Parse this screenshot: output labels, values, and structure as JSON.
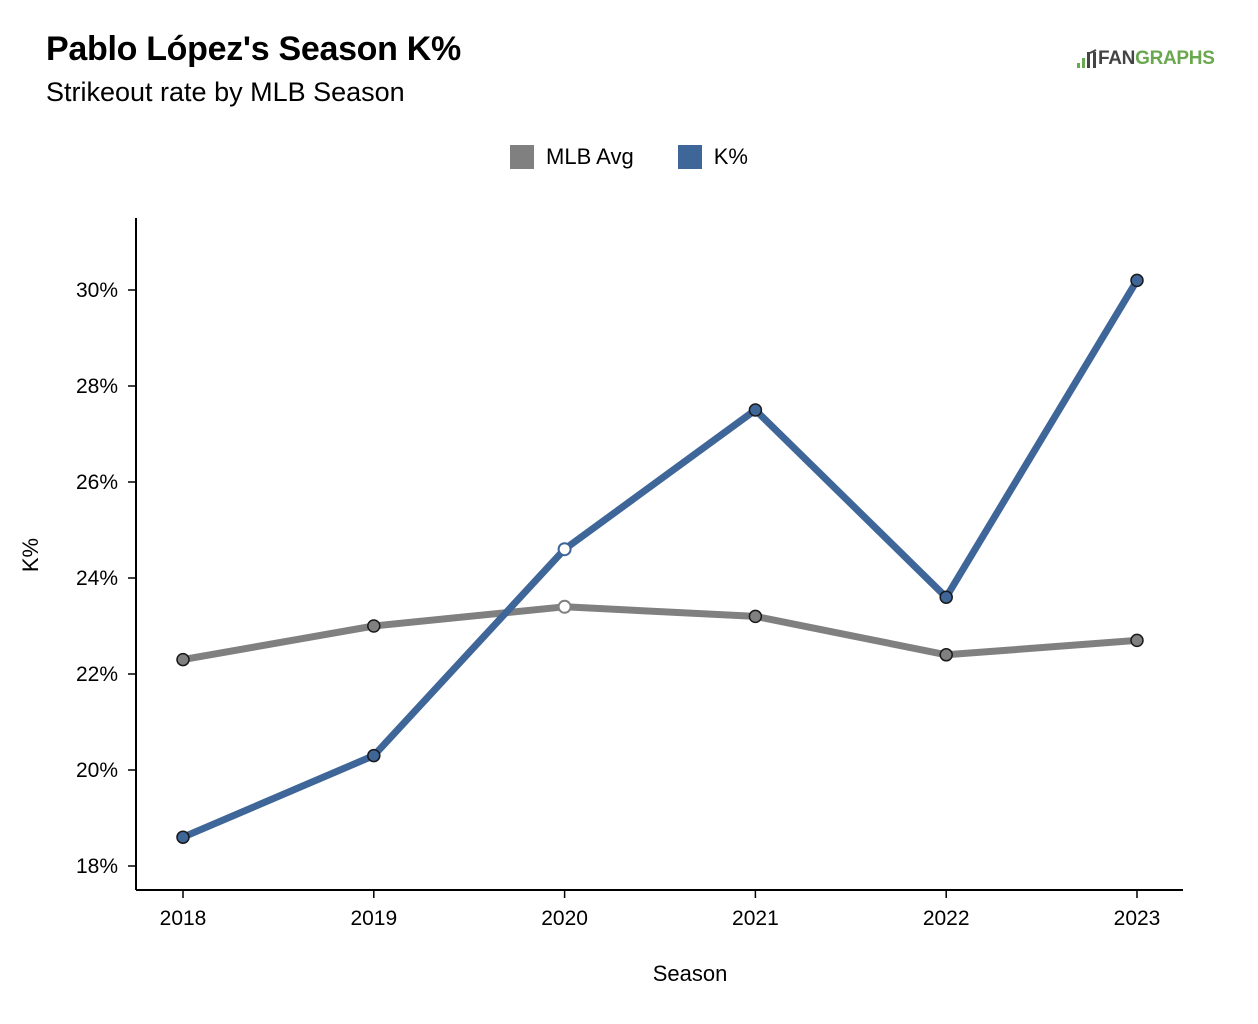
{
  "title": "Pablo López's Season K%",
  "subtitle": "Strikeout rate by MLB Season",
  "logo": {
    "fan": "FAN",
    "graphs": "GRAPHS"
  },
  "colors": {
    "mlb_avg": "#808080",
    "k_pct": "#3e6699",
    "logo_green": "#6aa84f"
  },
  "chart_data": {
    "type": "line",
    "title": "Pablo López's Season K%",
    "subtitle": "Strikeout rate by MLB Season",
    "xlabel": "Season",
    "ylabel": "K%",
    "categories": [
      "2018",
      "2019",
      "2020",
      "2021",
      "2022",
      "2023"
    ],
    "yticks": [
      18,
      20,
      22,
      24,
      26,
      28,
      30
    ],
    "ytick_labels": [
      "18%",
      "20%",
      "22%",
      "24%",
      "26%",
      "28%",
      "30%"
    ],
    "ylim": [
      17.5,
      31.5
    ],
    "legend_position": "top-center",
    "series": [
      {
        "name": "MLB Avg",
        "color": "#808080",
        "values": [
          22.3,
          23.0,
          23.4,
          23.2,
          22.4,
          22.7
        ],
        "hollow_points": [
          2
        ]
      },
      {
        "name": "K%",
        "color": "#3e6699",
        "values": [
          18.6,
          20.3,
          24.6,
          27.5,
          23.6,
          30.2
        ],
        "hollow_points": [
          2
        ]
      }
    ]
  }
}
